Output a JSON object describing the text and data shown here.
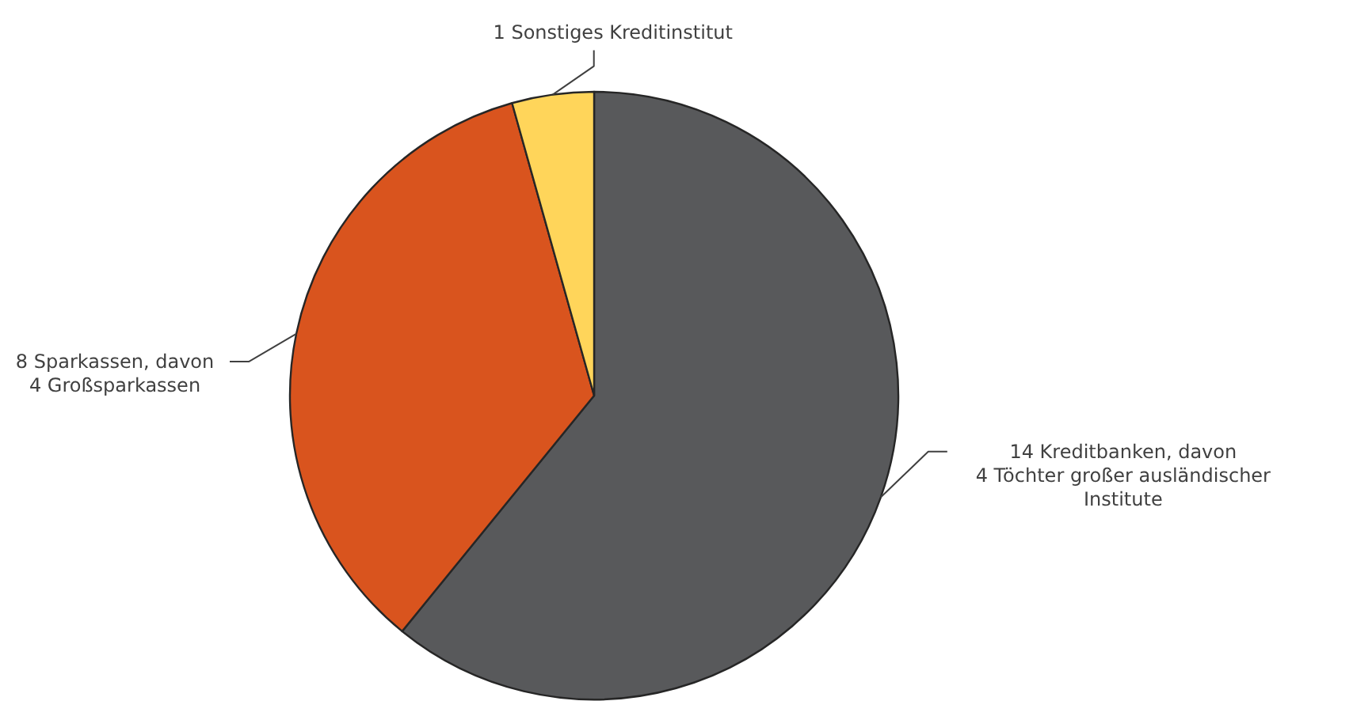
{
  "chart_data": {
    "type": "pie",
    "categories": [
      "14 Kreditbanken, davon\n4 Töchter großer ausländischer\nInstitute",
      "8 Sparkassen, davon\n4 Großsparkassen",
      "1 Sonstiges Kreditinstitut"
    ],
    "values": [
      14,
      8,
      1
    ],
    "colors": [
      "#58595b",
      "#d9541e",
      "#ffd55a"
    ]
  }
}
